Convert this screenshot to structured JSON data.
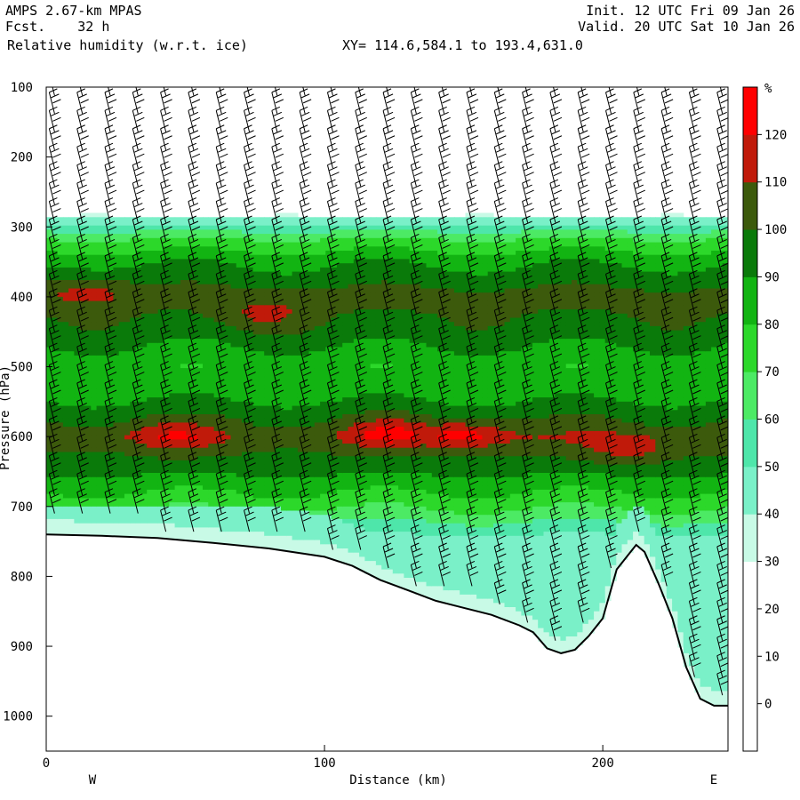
{
  "header": {
    "model": "AMPS 2.67-km MPAS",
    "forecast": "Fcst.    32 h",
    "field": "Relative humidity (w.r.t. ice)",
    "xy": "XY= 114.6,584.1 to 193.4,631.0",
    "init": "Init. 12 UTC Fri 09 Jan 26",
    "valid": "Valid. 20 UTC Sat 10 Jan 26"
  },
  "chart_data": {
    "type": "heatmap",
    "title": "Relative humidity (w.r.t. ice)",
    "xlabel": "Distance (km)",
    "ylabel": "Pressure (hPa)",
    "xlim": [
      0,
      245
    ],
    "ylim": [
      1050,
      100
    ],
    "x_ticks": [
      0,
      100,
      200
    ],
    "y_ticks": [
      100,
      200,
      300,
      400,
      500,
      600,
      700,
      800,
      900,
      1000
    ],
    "left_end_label": "W",
    "right_end_label": "E",
    "colorbar": {
      "unit": "%",
      "levels": [
        0,
        10,
        20,
        30,
        40,
        50,
        60,
        70,
        80,
        90,
        100,
        110,
        120
      ],
      "colors": [
        "#ffffff",
        "#ffffff",
        "#ffffff",
        "#ffffff",
        "#c8fae6",
        "#7af0c8",
        "#4ee6aa",
        "#4cea64",
        "#2cd82a",
        "#12b412",
        "#0a7a0a",
        "#3c5a0c",
        "#c01a0a",
        "#ff0000"
      ]
    },
    "rh_band_centers_hPa": [
      {
        "pressure": 290,
        "rh": 45
      },
      {
        "pressure": 320,
        "rh": 72
      },
      {
        "pressure": 350,
        "rh": 88
      },
      {
        "pressure": 400,
        "rh": 104
      },
      {
        "pressure": 450,
        "rh": 96
      },
      {
        "pressure": 500,
        "rh": 82
      },
      {
        "pressure": 550,
        "rh": 90
      },
      {
        "pressure": 600,
        "rh": 108
      },
      {
        "pressure": 650,
        "rh": 92
      },
      {
        "pressure": 700,
        "rh": 72
      },
      {
        "pressure": 750,
        "rh": 45
      }
    ],
    "rh_maxima_over_110": [
      {
        "x_km": 15,
        "p_hPa": 390,
        "rh": 114
      },
      {
        "x_km": 78,
        "p_hPa": 425,
        "rh": 113
      },
      {
        "x_km": 45,
        "p_hPa": 600,
        "rh": 113
      },
      {
        "x_km": 125,
        "p_hPa": 595,
        "rh": 117
      },
      {
        "x_km": 150,
        "p_hPa": 598,
        "rh": 121
      },
      {
        "x_km": 210,
        "p_hPa": 620,
        "rh": 114
      }
    ],
    "terrain_surface": {
      "x_km": [
        0,
        20,
        40,
        60,
        80,
        100,
        110,
        120,
        130,
        140,
        150,
        160,
        170,
        175,
        180,
        185,
        190,
        195,
        200,
        205,
        210,
        212,
        215,
        220,
        225,
        230,
        235,
        240,
        245
      ],
      "p_hPa": [
        740,
        742,
        745,
        752,
        760,
        772,
        785,
        805,
        820,
        835,
        845,
        855,
        870,
        880,
        903,
        910,
        905,
        885,
        860,
        790,
        765,
        755,
        765,
        810,
        860,
        930,
        975,
        985,
        985
      ]
    },
    "wind_barb_columns_km": [
      3,
      13,
      23,
      33,
      43,
      53,
      63,
      73,
      83,
      93,
      103,
      113,
      123,
      133,
      143,
      153,
      163,
      173,
      183,
      193,
      203,
      213,
      223,
      233,
      243
    ]
  }
}
